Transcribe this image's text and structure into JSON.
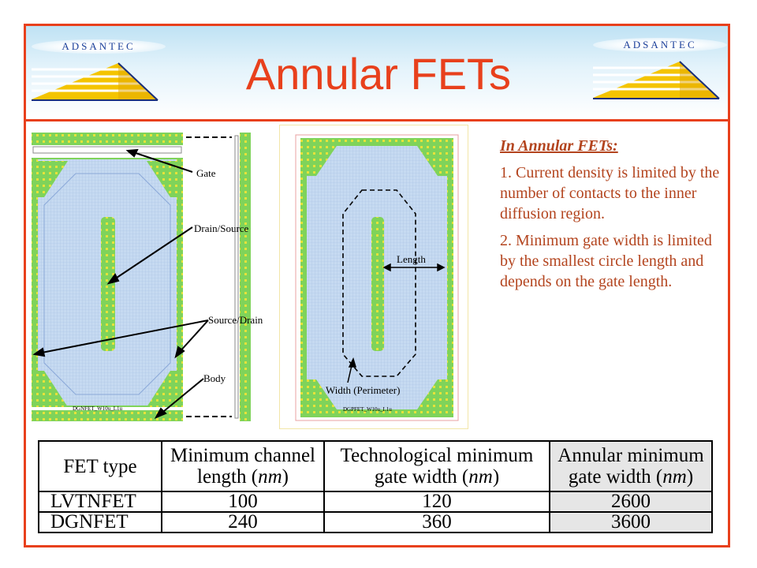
{
  "slide": {
    "title": "Annular FETs",
    "logo_text": "ADSANTEC"
  },
  "colors": {
    "accent": "#e8401c",
    "text_brown": "#b3441e",
    "layout_green": "#7fd35a",
    "layout_blue": "#c6daf1",
    "logo_yellow": "#f4c400"
  },
  "left_layout": {
    "labels": {
      "gate": "Gate",
      "drain_source": "Drain/Source",
      "source_drain": "Source/Drain",
      "body": "Body"
    },
    "caption": "DGNFET_W10u_L1u"
  },
  "right_layout": {
    "labels": {
      "length": "Length",
      "width": "Width (Perimeter)"
    },
    "caption": "DGPFET_W10u_L1u"
  },
  "text": {
    "heading": "In Annular FETs:",
    "point1": "1. Current density is limited by the number of contacts to the inner diffusion region.",
    "point2": "2. Minimum gate width is limited by the smallest circle length and depends on the gate length."
  },
  "table": {
    "headers": [
      {
        "line1": "FET type",
        "line2": ""
      },
      {
        "line1": "Minimum channel",
        "line2": "length (nm)"
      },
      {
        "line1": "Technological minimum",
        "line2": "gate width (nm)"
      },
      {
        "line1": "Annular minimum",
        "line2": "gate width (nm)"
      }
    ],
    "rows": [
      [
        "LVTNFET",
        "100",
        "120",
        "2600"
      ],
      [
        "DGNFET",
        "240",
        "360",
        "3600"
      ]
    ]
  }
}
